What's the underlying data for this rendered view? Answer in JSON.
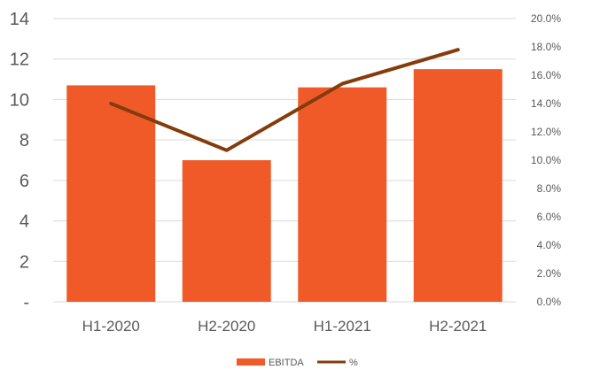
{
  "chart_data": {
    "type": "bar",
    "categories": [
      "H1-2020",
      "H2-2020",
      "H1-2021",
      "H2-2021"
    ],
    "series": [
      {
        "name": "EBITDA",
        "type": "bar",
        "axis": "left",
        "color": "#F05A28",
        "values": [
          10.7,
          7.0,
          10.6,
          11.5
        ]
      },
      {
        "name": "%",
        "type": "line",
        "axis": "right",
        "color": "#843C0C",
        "values": [
          0.14,
          0.107,
          0.154,
          0.178
        ]
      }
    ],
    "y_left": {
      "ylim": [
        0,
        14
      ],
      "ticks": [
        0,
        2,
        4,
        6,
        8,
        10,
        12,
        14
      ],
      "tick_labels": [
        "-",
        "2",
        "4",
        "6",
        "8",
        "10",
        "12",
        "14"
      ]
    },
    "y_right": {
      "ylim": [
        0,
        0.2
      ],
      "ticks": [
        0,
        0.02,
        0.04,
        0.06,
        0.08,
        0.1,
        0.12,
        0.14,
        0.16,
        0.18,
        0.2
      ],
      "tick_labels": [
        "0.0%",
        "2.0%",
        "4.0%",
        "6.0%",
        "8.0%",
        "10.0%",
        "12.0%",
        "14.0%",
        "16.0%",
        "18.0%",
        "20.0%"
      ]
    },
    "grid": true,
    "legend": {
      "position": "bottom",
      "entries": [
        "EBITDA",
        "%"
      ]
    },
    "gridline_color": "#D9D9D9"
  }
}
